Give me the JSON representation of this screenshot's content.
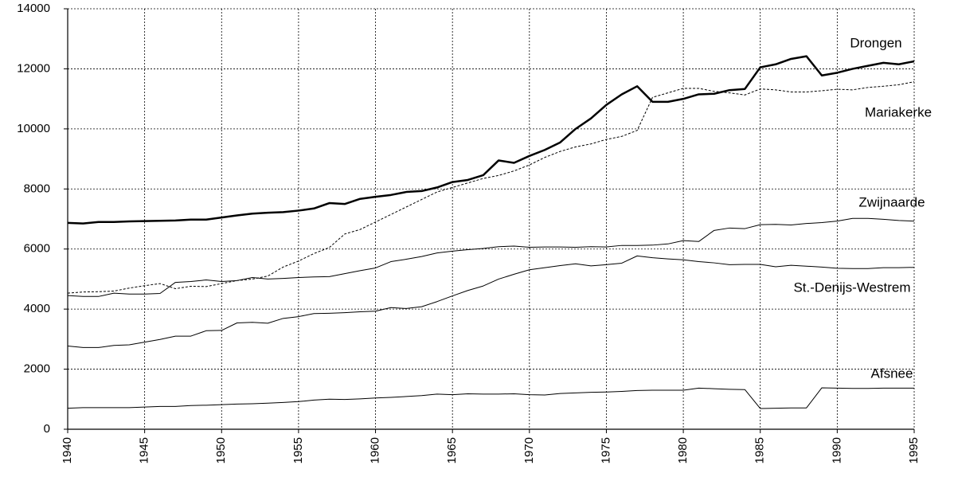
{
  "chart_data": {
    "type": "line",
    "x": [
      1940,
      1941,
      1942,
      1943,
      1944,
      1945,
      1946,
      1947,
      1948,
      1949,
      1950,
      1951,
      1952,
      1953,
      1954,
      1955,
      1956,
      1957,
      1958,
      1959,
      1960,
      1961,
      1962,
      1963,
      1964,
      1965,
      1966,
      1967,
      1968,
      1969,
      1970,
      1971,
      1972,
      1973,
      1974,
      1975,
      1976,
      1977,
      1978,
      1979,
      1980,
      1981,
      1982,
      1983,
      1984,
      1985,
      1986,
      1987,
      1988,
      1989,
      1990,
      1991,
      1992,
      1993,
      1994,
      1995
    ],
    "xlim": [
      1940,
      1995
    ],
    "xticks": [
      1940,
      1945,
      1950,
      1955,
      1960,
      1965,
      1970,
      1975,
      1980,
      1985,
      1990,
      1995
    ],
    "ylim": [
      0,
      14000
    ],
    "yticks": [
      0,
      2000,
      4000,
      6000,
      8000,
      10000,
      12000,
      14000
    ],
    "grid": true,
    "series": [
      {
        "name": "Drongen",
        "color": "#000000",
        "line_style": "solid",
        "line_width": 2.5,
        "values": [
          6870,
          6850,
          6900,
          6900,
          6920,
          6930,
          6940,
          6950,
          6980,
          6980,
          7050,
          7120,
          7180,
          7210,
          7230,
          7280,
          7350,
          7530,
          7500,
          7670,
          7740,
          7800,
          7900,
          7930,
          8050,
          8230,
          8300,
          8460,
          8950,
          8870,
          9100,
          9300,
          9550,
          10000,
          10350,
          10800,
          11150,
          11420,
          10900,
          10900,
          11000,
          11150,
          11170,
          11290,
          11330,
          12050,
          12150,
          12330,
          12420,
          11780,
          11870,
          12000,
          12100,
          12200,
          12150,
          12250
        ]
      },
      {
        "name": "Mariakerke",
        "color": "#000000",
        "line_style": "dashed",
        "line_width": 1,
        "values": [
          4530,
          4570,
          4580,
          4600,
          4700,
          4780,
          4850,
          4680,
          4760,
          4750,
          4850,
          4950,
          5000,
          5100,
          5400,
          5600,
          5850,
          6050,
          6500,
          6650,
          6900,
          7150,
          7400,
          7650,
          7900,
          8050,
          8200,
          8350,
          8450,
          8600,
          8800,
          9050,
          9250,
          9400,
          9500,
          9650,
          9750,
          9950,
          11050,
          11200,
          11350,
          11350,
          11250,
          11200,
          11130,
          11330,
          11300,
          11230,
          11230,
          11270,
          11320,
          11300,
          11380,
          11420,
          11470,
          11570
        ]
      },
      {
        "name": "Zwijnaarde",
        "color": "#000000",
        "line_style": "solid",
        "line_width": 1,
        "values": [
          4450,
          4420,
          4420,
          4530,
          4500,
          4500,
          4520,
          4890,
          4920,
          4970,
          4920,
          4950,
          5050,
          5000,
          5020,
          5050,
          5070,
          5080,
          5180,
          5280,
          5370,
          5580,
          5660,
          5750,
          5870,
          5930,
          5980,
          6020,
          6080,
          6100,
          6060,
          6070,
          6070,
          6060,
          6080,
          6070,
          6120,
          6120,
          6130,
          6170,
          6280,
          6250,
          6620,
          6700,
          6680,
          6810,
          6820,
          6800,
          6850,
          6880,
          6930,
          7020,
          7020,
          6990,
          6950,
          6930
        ]
      },
      {
        "name": "St.-Denijs-Westrem",
        "color": "#000000",
        "line_style": "solid",
        "line_width": 1,
        "values": [
          2770,
          2720,
          2720,
          2790,
          2810,
          2900,
          2990,
          3100,
          3100,
          3280,
          3290,
          3540,
          3560,
          3530,
          3690,
          3750,
          3850,
          3860,
          3880,
          3910,
          3930,
          4050,
          4020,
          4080,
          4250,
          4440,
          4620,
          4770,
          5000,
          5160,
          5310,
          5380,
          5450,
          5510,
          5440,
          5480,
          5530,
          5770,
          5710,
          5670,
          5640,
          5580,
          5540,
          5480,
          5490,
          5490,
          5410,
          5460,
          5430,
          5400,
          5360,
          5350,
          5350,
          5380,
          5380,
          5390
        ]
      },
      {
        "name": "Afsnee",
        "color": "#000000",
        "line_style": "solid",
        "line_width": 1,
        "values": [
          700,
          720,
          720,
          720,
          720,
          740,
          760,
          760,
          790,
          800,
          820,
          840,
          850,
          870,
          890,
          920,
          970,
          1000,
          990,
          1010,
          1040,
          1060,
          1090,
          1120,
          1170,
          1150,
          1180,
          1170,
          1170,
          1180,
          1150,
          1140,
          1190,
          1210,
          1230,
          1240,
          1260,
          1290,
          1300,
          1300,
          1300,
          1370,
          1350,
          1330,
          1320,
          690,
          700,
          710,
          710,
          1380,
          1370,
          1360,
          1360,
          1370,
          1370,
          1370
        ]
      }
    ]
  }
}
